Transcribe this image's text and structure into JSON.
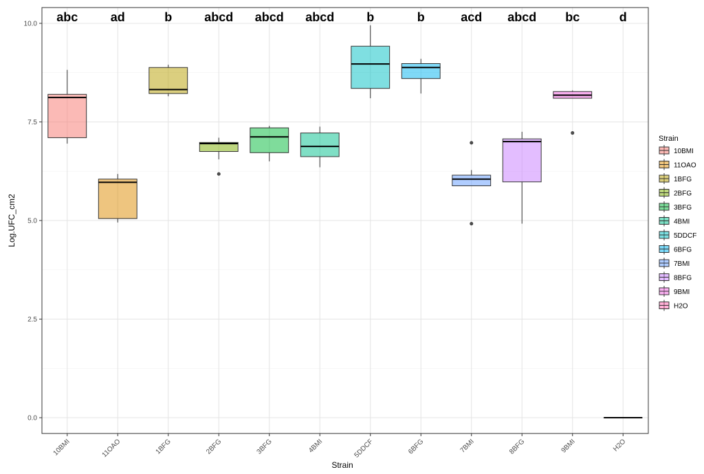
{
  "chart_data": {
    "type": "boxplot",
    "xlabel": "Strain",
    "ylabel": "Log.UFC_cm2",
    "ylim": [
      -0.4,
      10.4
    ],
    "yticks": [
      0.0,
      2.5,
      5.0,
      7.5,
      10.0
    ],
    "ytick_labels": [
      "0.0",
      "2.5",
      "5.0",
      "7.5",
      "10.0"
    ],
    "grid": true,
    "legend": {
      "title": "Strain",
      "position": "right"
    },
    "categories": [
      "10BMI",
      "11OAO",
      "1BFG",
      "2BFG",
      "3BFG",
      "4BMI",
      "5DDCF",
      "6BFG",
      "7BMI",
      "8BFG",
      "9BMI",
      "H2O"
    ],
    "colors": [
      "#F8766D",
      "#DE8C00",
      "#B79F00",
      "#7CAE00",
      "#00BA38",
      "#00C08B",
      "#00BFC4",
      "#00B4F0",
      "#619CFF",
      "#C77CFF",
      "#F564E3",
      "#FF64B0"
    ],
    "boxes": [
      {
        "min": 6.95,
        "q1": 7.1,
        "median": 8.12,
        "q3": 8.2,
        "max": 8.82,
        "outliers": []
      },
      {
        "min": 4.95,
        "q1": 5.05,
        "median": 5.97,
        "q3": 6.05,
        "max": 6.18,
        "outliers": []
      },
      {
        "min": 8.15,
        "q1": 8.22,
        "median": 8.32,
        "q3": 8.88,
        "max": 8.95,
        "outliers": []
      },
      {
        "min": 6.55,
        "q1": 6.75,
        "median": 6.95,
        "q3": 6.98,
        "max": 7.1,
        "outliers": [
          6.18
        ]
      },
      {
        "min": 6.5,
        "q1": 6.72,
        "median": 7.12,
        "q3": 7.35,
        "max": 7.4,
        "outliers": []
      },
      {
        "min": 6.35,
        "q1": 6.62,
        "median": 6.88,
        "q3": 7.22,
        "max": 7.38,
        "outliers": []
      },
      {
        "min": 8.1,
        "q1": 8.35,
        "median": 8.97,
        "q3": 9.42,
        "max": 9.95,
        "outliers": []
      },
      {
        "min": 8.22,
        "q1": 8.6,
        "median": 8.88,
        "q3": 8.98,
        "max": 9.1,
        "outliers": []
      },
      {
        "min": 5.88,
        "q1": 5.88,
        "median": 6.05,
        "q3": 6.15,
        "max": 6.28,
        "outliers": [
          6.97,
          4.92
        ]
      },
      {
        "min": 4.92,
        "q1": 5.98,
        "median": 7.0,
        "q3": 7.07,
        "max": 7.25,
        "outliers": []
      },
      {
        "min": 8.1,
        "q1": 8.1,
        "median": 8.18,
        "q3": 8.27,
        "max": 8.3,
        "outliers": [
          7.22
        ]
      },
      {
        "min": 0.0,
        "q1": 0.0,
        "median": 0.0,
        "q3": 0.0,
        "max": 0.0,
        "outliers": []
      }
    ],
    "annotations": [
      "abc",
      "ad",
      "b",
      "abcd",
      "abcd",
      "abcd",
      "b",
      "b",
      "acd",
      "abcd",
      "bc",
      "d"
    ]
  }
}
